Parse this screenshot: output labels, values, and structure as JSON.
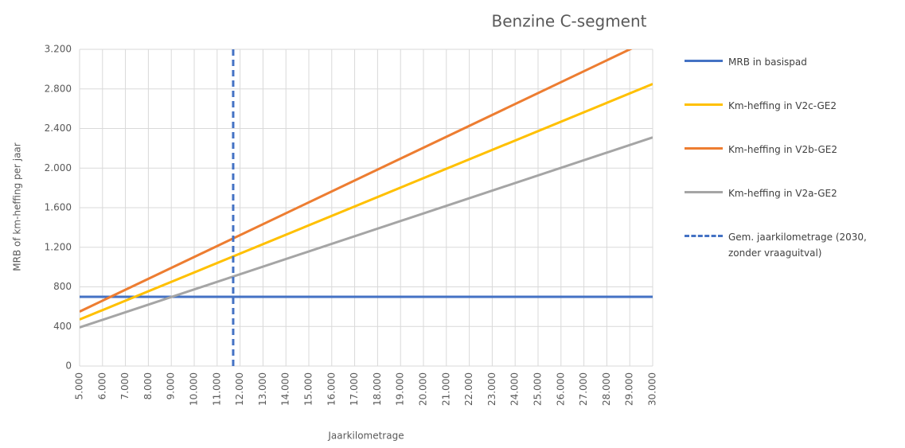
{
  "chart_data": {
    "type": "line",
    "title": "Benzine C-segment",
    "xlabel": "Jaarkilometrage",
    "ylabel": "MRB of km-heffing per jaar",
    "xlim": [
      5000,
      30000
    ],
    "ylim": [
      0,
      3200
    ],
    "xticks": [
      {
        "value": 5000,
        "label": "5.000"
      },
      {
        "value": 6000,
        "label": "6.000"
      },
      {
        "value": 7000,
        "label": "7.000"
      },
      {
        "value": 8000,
        "label": "8.000"
      },
      {
        "value": 9000,
        "label": "9.000"
      },
      {
        "value": 10000,
        "label": "10.000"
      },
      {
        "value": 11000,
        "label": "11.000"
      },
      {
        "value": 12000,
        "label": "12.000"
      },
      {
        "value": 13000,
        "label": "13.000"
      },
      {
        "value": 14000,
        "label": "14.000"
      },
      {
        "value": 15000,
        "label": "15.000"
      },
      {
        "value": 16000,
        "label": "16.000"
      },
      {
        "value": 17000,
        "label": "17.000"
      },
      {
        "value": 18000,
        "label": "18.000"
      },
      {
        "value": 19000,
        "label": "19.000"
      },
      {
        "value": 20000,
        "label": "20.000"
      },
      {
        "value": 21000,
        "label": "21.000"
      },
      {
        "value": 22000,
        "label": "22.000"
      },
      {
        "value": 23000,
        "label": "23.000"
      },
      {
        "value": 24000,
        "label": "24.000"
      },
      {
        "value": 25000,
        "label": "25.000"
      },
      {
        "value": 26000,
        "label": "26.000"
      },
      {
        "value": 27000,
        "label": "27.000"
      },
      {
        "value": 28000,
        "label": "28.000"
      },
      {
        "value": 29000,
        "label": "29.000"
      },
      {
        "value": 30000,
        "label": "30.000"
      }
    ],
    "yticks": [
      0,
      400,
      800,
      {
        "value": 1200,
        "label": "1.200"
      },
      {
        "value": 1600,
        "label": "1.600"
      },
      {
        "value": 2000,
        "label": "2.000"
      },
      {
        "value": 2400,
        "label": "2.400"
      },
      {
        "value": 2800,
        "label": "2.800"
      },
      {
        "value": 3200,
        "label": "3.200"
      }
    ],
    "grid": true,
    "series": [
      {
        "name": "MRB in basispad",
        "color": "#4472c4",
        "x": [
          5000,
          30000
        ],
        "values": [
          700,
          700
        ]
      },
      {
        "name": "Km-heffing in V2c-GE2",
        "color": "#ffc000",
        "x": [
          5000,
          30000
        ],
        "values": [
          470,
          2850
        ]
      },
      {
        "name": "Km-heffing in V2b-GE2",
        "color": "#ed7d31",
        "x": [
          5000,
          30000
        ],
        "values": [
          550,
          3310
        ]
      },
      {
        "name": "Km-heffing in V2a-GE2",
        "color": "#a5a5a5",
        "x": [
          5000,
          30000
        ],
        "values": [
          390,
          2310
        ]
      },
      {
        "name": "Gem. jaarkilometrage (2030, zonder vraaguitval)",
        "color": "#4472c4",
        "dashed": true,
        "x": [
          11700,
          11700
        ],
        "values": [
          0,
          3200
        ]
      }
    ]
  }
}
